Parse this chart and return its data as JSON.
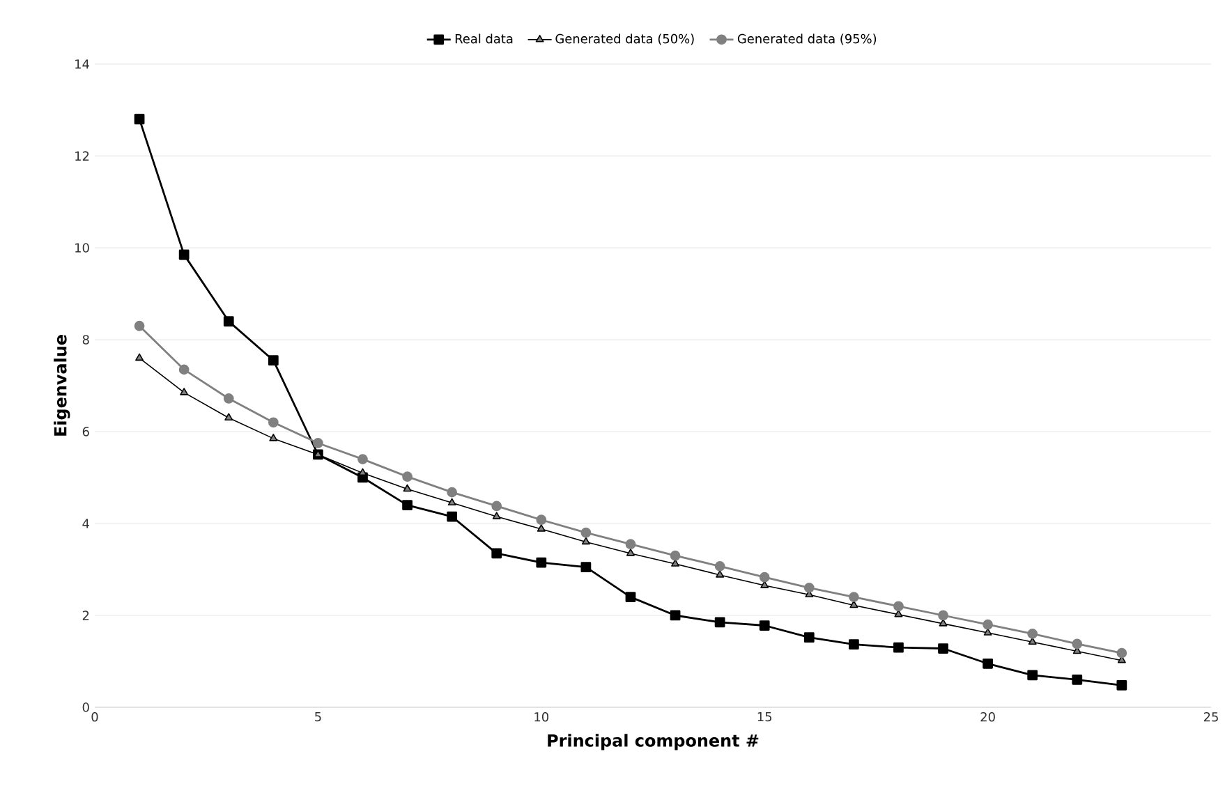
{
  "chart_data": {
    "type": "line",
    "xlabel": "Principal component #",
    "ylabel": "Eigenvalue",
    "x": [
      1,
      2,
      3,
      4,
      5,
      6,
      7,
      8,
      9,
      10,
      11,
      12,
      13,
      14,
      15,
      16,
      17,
      18,
      19,
      20,
      21,
      22,
      23
    ],
    "series": [
      {
        "name": "Real data",
        "color": "#000000",
        "marker": "square",
        "values": [
          12.8,
          9.85,
          8.4,
          7.55,
          5.5,
          5.0,
          4.4,
          4.15,
          3.35,
          3.15,
          3.05,
          2.4,
          2.0,
          1.85,
          1.78,
          1.52,
          1.37,
          1.3,
          1.28,
          0.95,
          0.7,
          0.6,
          0.48
        ]
      },
      {
        "name": "Generated data (50%)",
        "color": "#000000",
        "marker": "triangle",
        "values": [
          7.6,
          6.85,
          6.3,
          5.85,
          5.5,
          5.1,
          4.75,
          4.45,
          4.15,
          3.88,
          3.6,
          3.35,
          3.12,
          2.88,
          2.65,
          2.45,
          2.22,
          2.02,
          1.82,
          1.62,
          1.42,
          1.22,
          1.02
        ]
      },
      {
        "name": "Generated data (95%)",
        "color": "#808080",
        "marker": "circle",
        "values": [
          8.3,
          7.35,
          6.72,
          6.2,
          5.75,
          5.4,
          5.02,
          4.68,
          4.38,
          4.08,
          3.8,
          3.55,
          3.3,
          3.07,
          2.83,
          2.6,
          2.4,
          2.2,
          2.0,
          1.8,
          1.6,
          1.38,
          1.18
        ]
      }
    ],
    "xlim": [
      0,
      25
    ],
    "xticks": [
      0,
      5,
      10,
      15,
      20,
      25
    ],
    "ylim": [
      0,
      14
    ],
    "yticks": [
      0,
      2,
      4,
      6,
      8,
      10,
      12,
      14
    ],
    "grid": "y",
    "legend": "top",
    "line_style": "solid"
  }
}
